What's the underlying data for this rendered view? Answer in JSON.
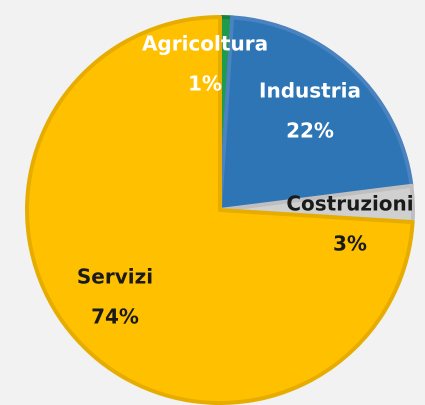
{
  "chart_data": {
    "type": "pie",
    "categories": [
      "Agricoltura",
      "Industria",
      "Costruzioni",
      "Servizi"
    ],
    "values": [
      1,
      22,
      3,
      74
    ],
    "value_labels": [
      "1%",
      "22%",
      "3%",
      "74%"
    ],
    "colors": [
      "#1e9b4b",
      "#2e75b6",
      "#d0d0d0",
      "#ffc000"
    ]
  }
}
